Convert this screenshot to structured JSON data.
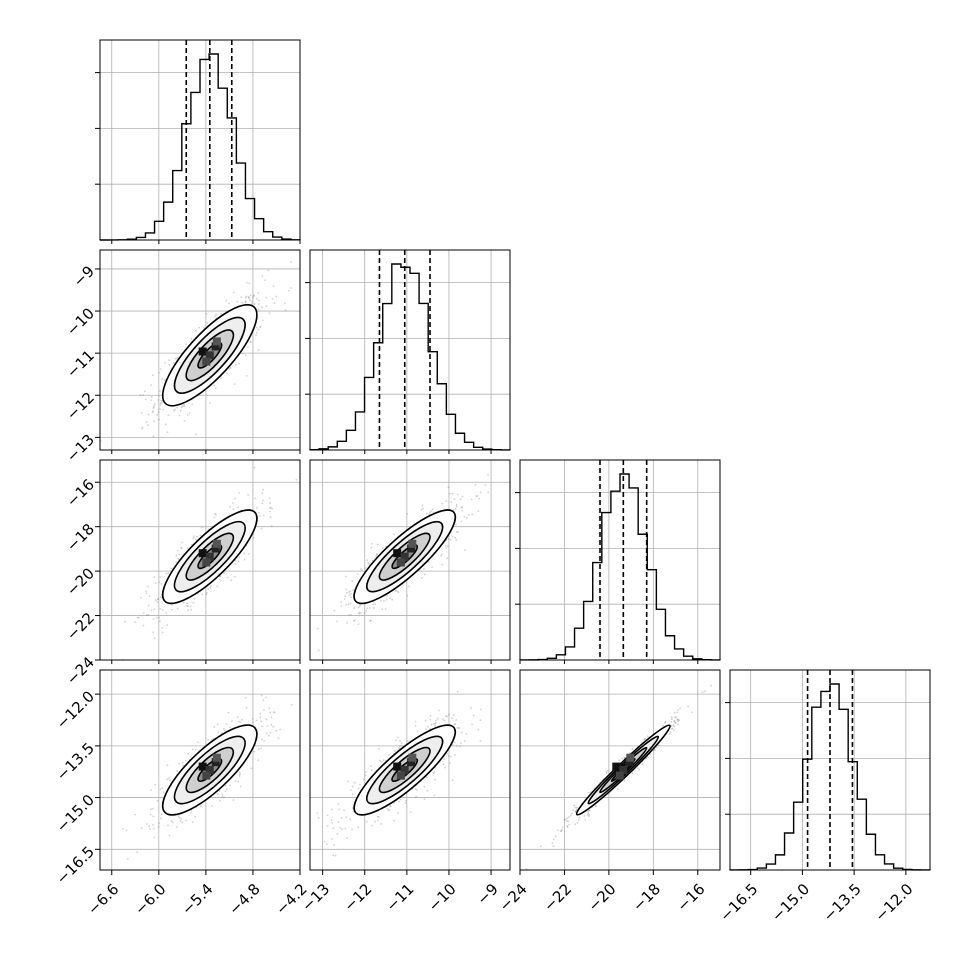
{
  "chart_data": {
    "type": "corner",
    "grid": true,
    "parameters": [
      {
        "mean": -5.35,
        "sigma": 0.3,
        "quantiles": [
          -5.65,
          -5.35,
          -5.07
        ],
        "range": [
          -6.75,
          -4.2
        ],
        "ticks": [
          -6.6,
          -6.0,
          -5.4,
          -4.8,
          -4.2
        ],
        "tick_labels": [
          "−6.6",
          "−6.0",
          "−5.4",
          "−4.8",
          "−4.2"
        ]
      },
      {
        "mean": -11.05,
        "sigma": 0.6,
        "quantiles": [
          -11.65,
          -11.05,
          -10.45
        ],
        "range": [
          -13.3,
          -8.55
        ],
        "ticks": [
          -13,
          -12,
          -11,
          -10,
          -9
        ],
        "tick_labels": [
          "−13",
          "−12",
          "−11",
          "−10",
          "−9"
        ]
      },
      {
        "mean": -19.35,
        "sigma": 1.05,
        "quantiles": [
          -20.4,
          -19.35,
          -18.3
        ],
        "range": [
          -24.0,
          -15.0
        ],
        "ticks": [
          -24,
          -22,
          -20,
          -18,
          -16
        ],
        "tick_labels": [
          "−24",
          "−22",
          "−20",
          "−18",
          "−16"
        ]
      },
      {
        "mean": -14.2,
        "sigma": 0.65,
        "quantiles": [
          -14.85,
          -14.2,
          -13.55
        ],
        "range": [
          -17.1,
          -11.3
        ],
        "ticks": [
          -16.5,
          -15.0,
          -13.5,
          -12.0
        ],
        "tick_labels": [
          "−16.5",
          "−15.0",
          "−13.5",
          "−12.0"
        ]
      }
    ],
    "correlations": [
      [
        1.0,
        0.8,
        0.82,
        0.8
      ],
      [
        0.8,
        1.0,
        0.85,
        0.85
      ],
      [
        0.82,
        0.85,
        1.0,
        0.98
      ],
      [
        0.8,
        0.85,
        0.98,
        1.0
      ]
    ],
    "contour_levels_sigma": [
      0.5,
      1.0,
      1.5,
      2.0
    ]
  }
}
